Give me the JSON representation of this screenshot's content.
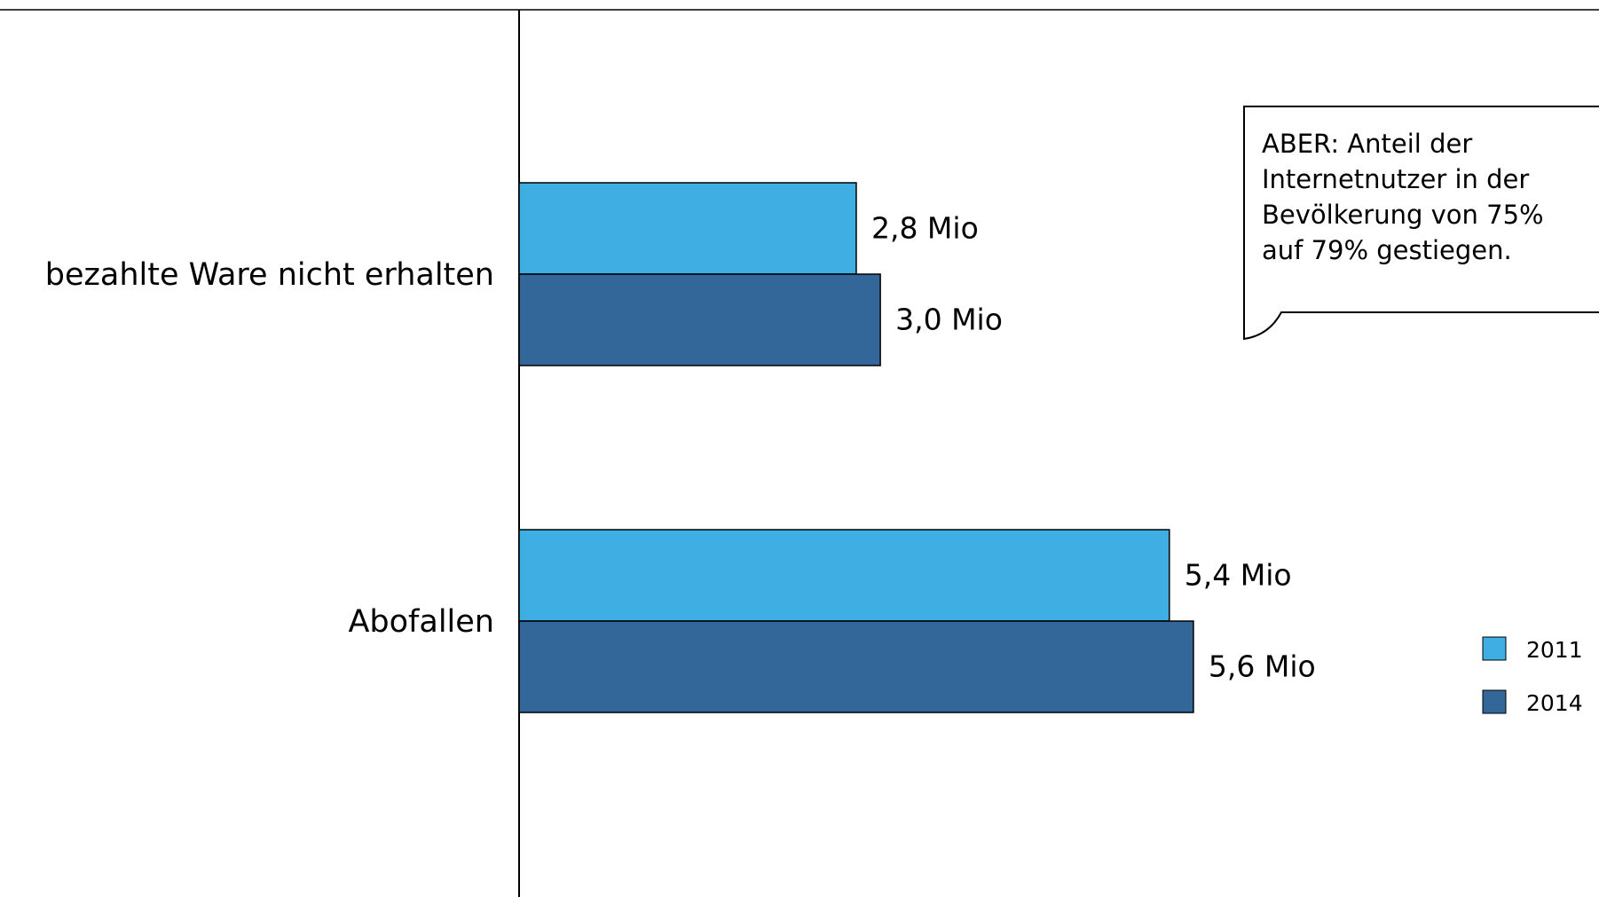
{
  "chart_data": {
    "type": "bar",
    "orientation": "horizontal",
    "categories": [
      "bezahlte Ware nicht erhalten",
      "Abofallen"
    ],
    "series": [
      {
        "name": "2011",
        "values": [
          2.8,
          5.4
        ],
        "labels": [
          "2,8 Mio",
          "5,4 Mio"
        ],
        "color": "#3faee3"
      },
      {
        "name": "2014",
        "values": [
          3.0,
          5.6
        ],
        "labels": [
          "3,0 Mio",
          "5,6 Mio"
        ],
        "color": "#336699"
      }
    ],
    "xlim": [
      0,
      9.5
    ],
    "grid": false,
    "legend_position": "bottom-right",
    "annotation": "ABER:  Anteil der Internetnutzer in der Bevölkerung von 75% auf 79% gestiegen."
  }
}
